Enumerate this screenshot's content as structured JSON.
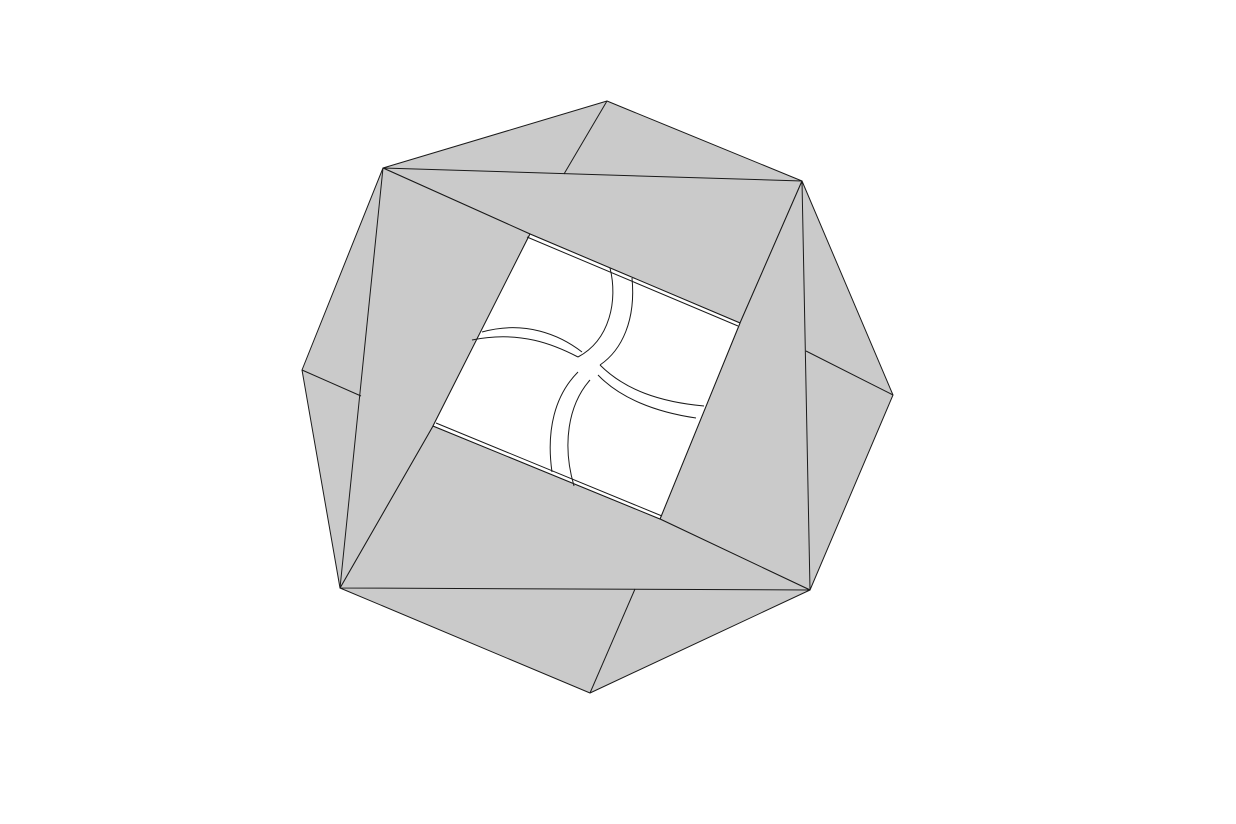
{
  "diagram": {
    "subject": "folded-octagon-with-square-window",
    "colors": {
      "background": "#ffffff",
      "panel_fill": "#cacaca",
      "window_fill": "#ffffff",
      "line": "#1a1a1a"
    }
  }
}
